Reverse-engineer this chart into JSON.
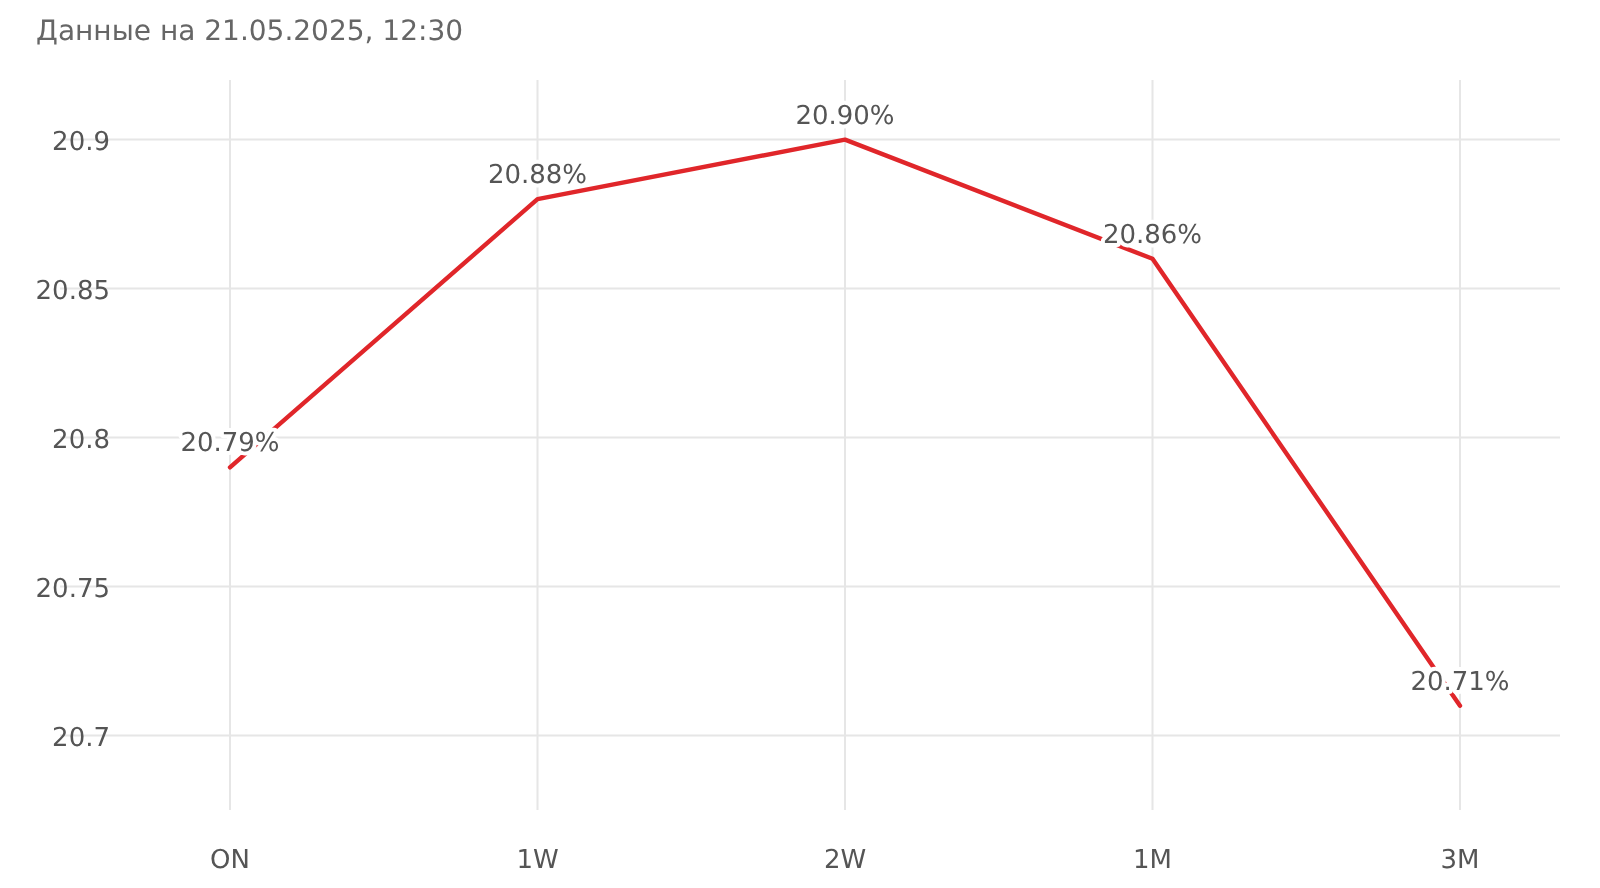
{
  "chart_data": {
    "type": "line",
    "title": "Данные на 21.05.2025, 12:30",
    "categories": [
      "ON",
      "1W",
      "2W",
      "1M",
      "3M"
    ],
    "series": [
      {
        "color": "#e0262a",
        "values": [
          20.79,
          20.88,
          20.9,
          20.86,
          20.71
        ],
        "value_labels": [
          "20.79%",
          "20.88%",
          "20.90%",
          "20.86%",
          "20.71%"
        ]
      }
    ],
    "ylim": [
      20.675,
      20.92
    ],
    "yticks": [
      20.7,
      20.75,
      20.8,
      20.85,
      20.9
    ],
    "grid": true,
    "marker": "none",
    "line_style": "solid"
  }
}
